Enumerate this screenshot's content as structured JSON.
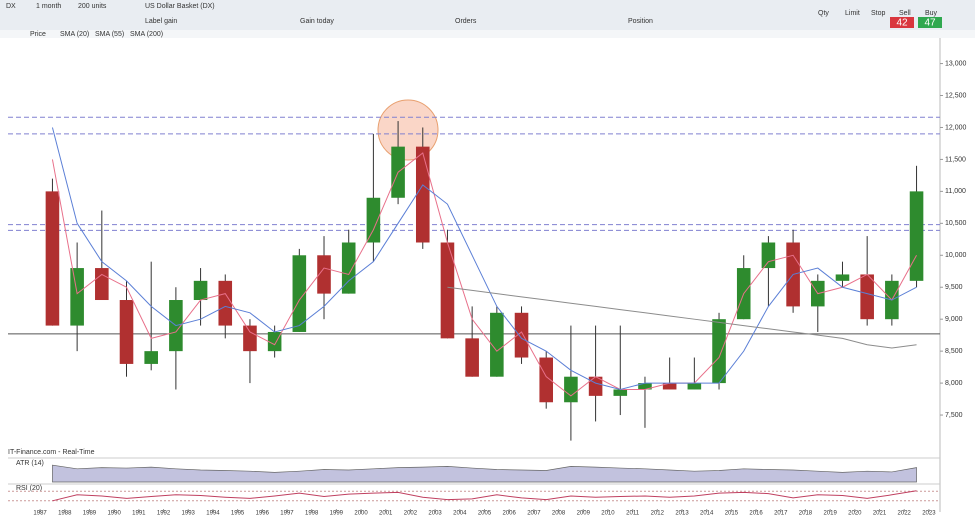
{
  "toolbar": {
    "symbol": "DX",
    "interval": "1 month",
    "size": "200 units",
    "instrument": "US Dollar Basket (DX)",
    "fields": [
      "Label gain",
      "Gain today",
      "Orders",
      "Position"
    ],
    "deal": [
      "Qty",
      "Limit",
      "Stop",
      "Sell",
      "Buy"
    ],
    "sell": "42",
    "buy": "47"
  },
  "legend": [
    "Price",
    "SMA (20)",
    "SMA (55)",
    "SMA (200)"
  ],
  "footer": "IT-Finance.com - Real-Time",
  "chart_data": [
    {
      "type": "candlestick",
      "x": [
        1987,
        1988,
        1989,
        1990,
        1991,
        1992,
        1993,
        1994,
        1995,
        1996,
        1997,
        1998,
        1999,
        2000,
        2001,
        2002,
        2003,
        2004,
        2005,
        2006,
        2007,
        2008,
        2009,
        2010,
        2011,
        2012,
        2013,
        2014,
        2015,
        2016,
        2017,
        2018,
        2019,
        2020,
        2021,
        2022
      ],
      "open": [
        11000,
        8900,
        9800,
        9300,
        8300,
        8500,
        9300,
        9600,
        8900,
        8500,
        8800,
        10000,
        9400,
        10200,
        10900,
        11700,
        10200,
        8700,
        8100,
        9100,
        8400,
        7700,
        8100,
        7800,
        7900,
        8000,
        7900,
        8000,
        9000,
        9800,
        10200,
        9200,
        9600,
        9700,
        9000,
        9600
      ],
      "high": [
        11200,
        10200,
        10700,
        9600,
        9900,
        9500,
        9800,
        9700,
        9000,
        8900,
        10100,
        10300,
        10400,
        11900,
        12100,
        12000,
        10400,
        9200,
        9200,
        9200,
        8500,
        8900,
        8900,
        8900,
        8100,
        8400,
        8400,
        9100,
        10000,
        10300,
        10400,
        9700,
        9900,
        10300,
        9700,
        11400
      ],
      "low": [
        8900,
        8500,
        9300,
        8100,
        8200,
        7900,
        8900,
        8700,
        8000,
        8400,
        8800,
        9000,
        9400,
        9900,
        10800,
        10100,
        8700,
        8100,
        8100,
        8300,
        7600,
        7100,
        7400,
        7500,
        7300,
        7900,
        7900,
        7900,
        9000,
        9200,
        9100,
        8800,
        9500,
        8900,
        8900,
        9500
      ],
      "close": [
        8900,
        9800,
        9300,
        8300,
        8500,
        9300,
        9600,
        8900,
        8500,
        8800,
        10000,
        9400,
        10200,
        10900,
        11700,
        10200,
        8700,
        8100,
        9100,
        8400,
        7700,
        8100,
        7800,
        7900,
        8000,
        7900,
        8000,
        9000,
        9800,
        10200,
        9200,
        9600,
        9700,
        9000,
        9600,
        11000
      ],
      "up_color": "#2e8b2e",
      "down_color": "#b03030",
      "series": [
        {
          "name": "SMA (20)",
          "color": "#e8708a",
          "values": [
            11500,
            9400,
            9700,
            9500,
            8700,
            8800,
            9300,
            9400,
            8800,
            8600,
            9300,
            9800,
            9700,
            10400,
            11300,
            11600,
            10200,
            9000,
            8500,
            8800,
            8100,
            7800,
            8100,
            7900,
            7900,
            8000,
            8000,
            8400,
            9400,
            9900,
            10000,
            9400,
            9500,
            9700,
            9300,
            10000
          ]
        },
        {
          "name": "SMA (55)",
          "color": "#5b7fd6",
          "values": [
            12000,
            10500,
            9900,
            9600,
            9200,
            8900,
            9000,
            9200,
            9100,
            8800,
            8900,
            9200,
            9600,
            9900,
            10500,
            11100,
            10800,
            10000,
            9200,
            8700,
            8500,
            8200,
            8000,
            7900,
            8000,
            8000,
            8000,
            8000,
            8500,
            9200,
            9700,
            9800,
            9500,
            9400,
            9300,
            9500
          ]
        },
        {
          "name": "SMA (200)",
          "color": "#8c8c8c",
          "values": [
            null,
            null,
            null,
            null,
            null,
            null,
            null,
            null,
            null,
            null,
            null,
            null,
            null,
            null,
            null,
            null,
            9500,
            9450,
            9400,
            9350,
            9300,
            9250,
            9200,
            9150,
            9100,
            9050,
            9000,
            8950,
            8900,
            8850,
            8800,
            8750,
            8700,
            8600,
            8550,
            8600
          ]
        }
      ],
      "levels": [
        12160,
        11900,
        10480,
        10390,
        8770
      ],
      "xlim": [
        1985.7,
        2023.45
      ],
      "ylim": [
        7000,
        13400
      ],
      "xticks": [
        1987,
        1988,
        1989,
        1990,
        1991,
        1992,
        1993,
        1994,
        1995,
        1996,
        1997,
        1998,
        1999,
        2000,
        2001,
        2002,
        2003,
        2004,
        2005,
        2006,
        2007,
        2008,
        2009,
        2010,
        2011,
        2012,
        2013,
        2014,
        2015,
        2016,
        2017,
        2018,
        2019,
        2020,
        2021,
        2022,
        2023
      ],
      "yticks": [
        {
          "value": 7500,
          "label": "7,500"
        },
        {
          "value": 8000,
          "label": "8,000"
        },
        {
          "value": 8500,
          "label": "8,500"
        },
        {
          "value": 9000,
          "label": "9,000"
        },
        {
          "value": 9500,
          "label": "9,500"
        },
        {
          "value": 10000,
          "label": "10,000"
        },
        {
          "value": 10500,
          "label": "10,500"
        },
        {
          "value": 11000,
          "label": "11,000"
        },
        {
          "value": 11500,
          "label": "11,500"
        },
        {
          "value": 12000,
          "label": "12,000"
        },
        {
          "value": 12500,
          "label": "12,500"
        },
        {
          "value": 13000,
          "label": "13,000"
        }
      ]
    },
    {
      "type": "area",
      "title": "ATR (14)",
      "color": "#9a9ac8",
      "ylim": [
        0,
        100
      ],
      "values": [
        70,
        55,
        60,
        58,
        62,
        55,
        50,
        48,
        45,
        40,
        45,
        52,
        50,
        55,
        60,
        62,
        65,
        58,
        52,
        50,
        48,
        65,
        62,
        58,
        55,
        50,
        45,
        48,
        55,
        52,
        50,
        45,
        40,
        45,
        42,
        60
      ]
    },
    {
      "type": "line",
      "title": "RSI (20)",
      "color": "#c04060",
      "ylim": [
        0,
        100
      ],
      "yticks": [
        30,
        70
      ],
      "values": [
        30,
        55,
        50,
        40,
        48,
        55,
        52,
        45,
        40,
        50,
        62,
        48,
        58,
        62,
        65,
        45,
        35,
        38,
        55,
        42,
        35,
        50,
        45,
        48,
        50,
        45,
        50,
        62,
        65,
        60,
        42,
        55,
        52,
        40,
        55,
        72
      ]
    }
  ]
}
